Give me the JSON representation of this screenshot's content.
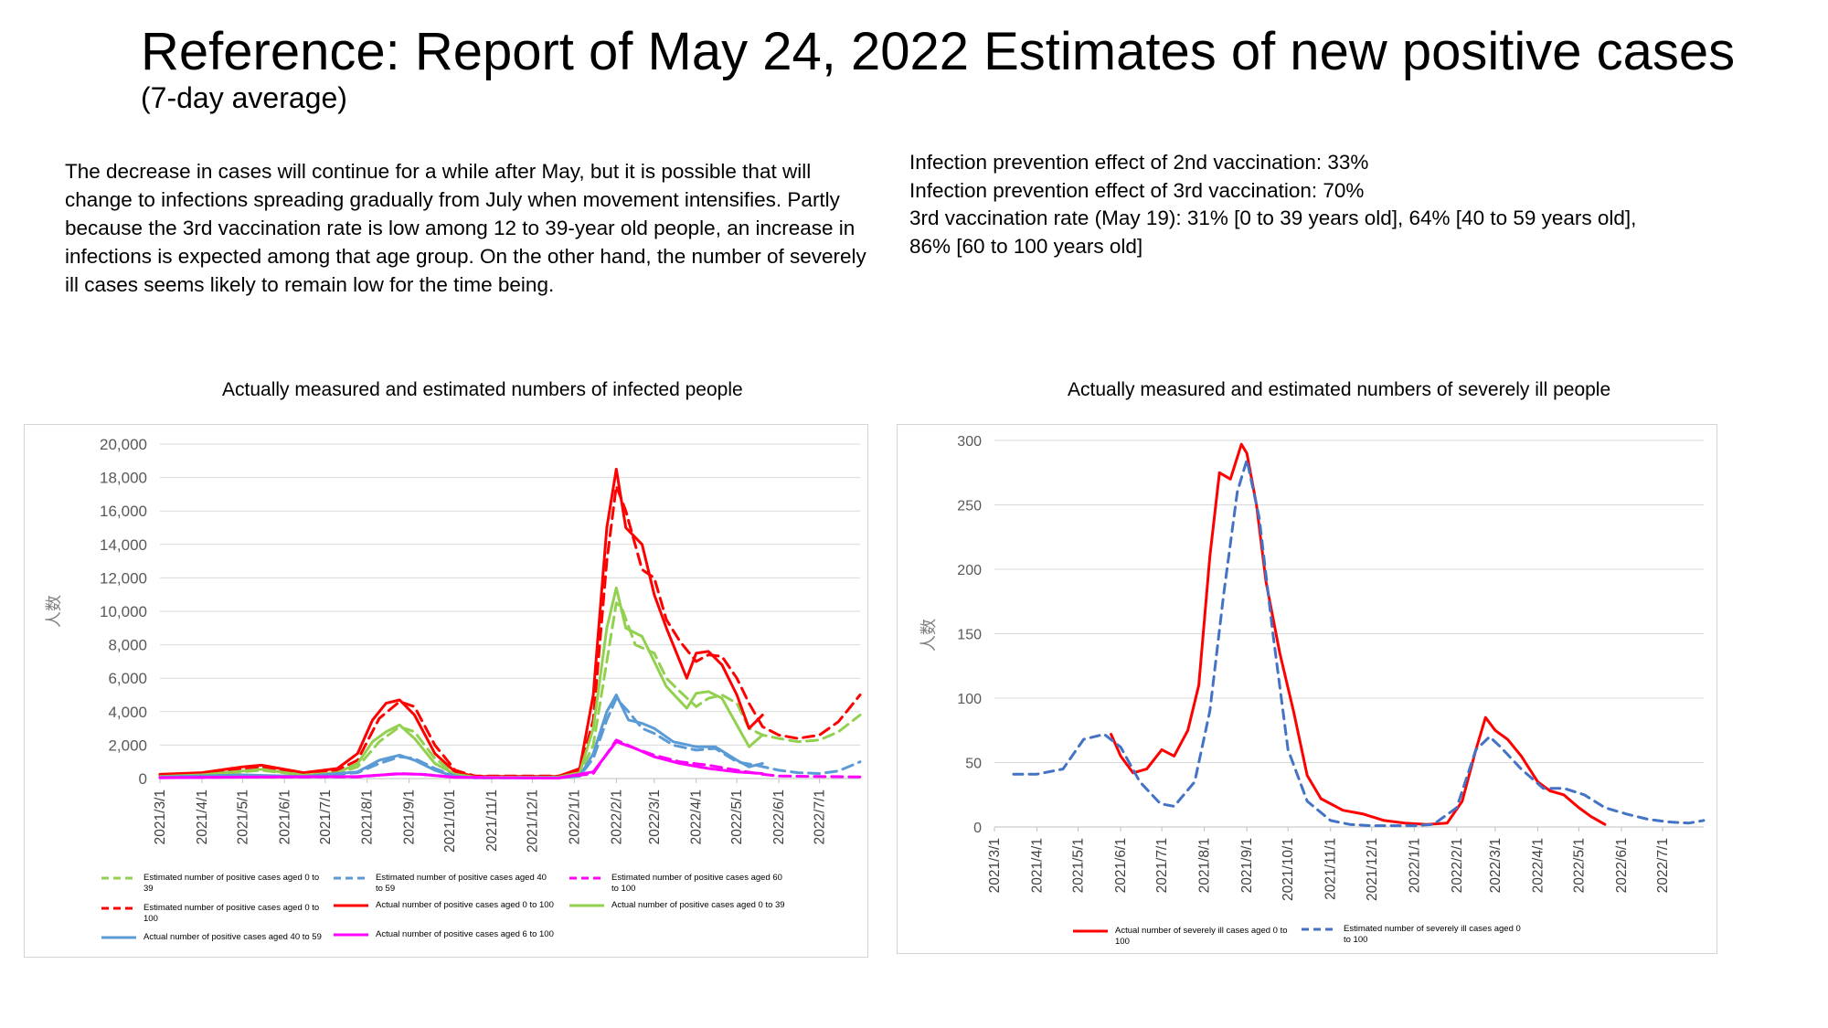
{
  "page": {
    "title": "Reference: Report of May 24, 2022  Estimates of new positive cases",
    "subtitle": "(7-day average)",
    "paragraph": "The decrease in cases will continue for a while after May, but it is possible that will change to infections spreading gradually from July when movement intensifies. Partly because the 3rd vaccination rate is low among 12 to 39-year old people, an increase in infections is expected among that age group. On the other hand, the number of severely ill cases seems likely to remain low for the time being.",
    "facts": [
      "Infection prevention effect of 2nd vaccination: 33%",
      "Infection prevention effect of 3rd vaccination: 70%",
      "3rd vaccination rate (May 19): 31% [0 to 39 years old], 64% [40 to 59 years old], 86% [60 to 100 years old]"
    ]
  },
  "chart_data": [
    {
      "type": "line",
      "title": "Actually measured and estimated numbers of infected people",
      "ylabel": "人数",
      "ylim": [
        0,
        20000
      ],
      "yticks": [
        0,
        2000,
        4000,
        6000,
        8000,
        10000,
        12000,
        14000,
        16000,
        18000,
        20000
      ],
      "ytick_labels": [
        "0",
        "2,000",
        "4,000",
        "6,000",
        "8,000",
        "10,000",
        "12,000",
        "14,000",
        "16,000",
        "18,000",
        "20,000"
      ],
      "xlim": [
        "2021-03-01",
        "2022-07-31"
      ],
      "xtick_labels": [
        "2021/3/1",
        "2021/4/1",
        "2021/5/1",
        "2021/6/1",
        "2021/7/1",
        "2021/8/1",
        "2021/9/1",
        "2021/10/1",
        "2021/11/1",
        "2021/12/1",
        "2022/1/1",
        "2022/2/1",
        "2022/3/1",
        "2022/4/1",
        "2022/5/1",
        "2022/6/1",
        "2022/7/1"
      ],
      "grid": true,
      "legend_position": "bottom",
      "series": [
        {
          "name": "Estimated number of positive cases aged 0 to 39",
          "color": "#92d050",
          "dashed": true,
          "x": [
            "2021-03-01",
            "2021-04-01",
            "2021-05-01",
            "2021-05-15",
            "2021-06-15",
            "2021-07-10",
            "2021-07-25",
            "2021-08-10",
            "2021-08-25",
            "2021-09-05",
            "2021-09-20",
            "2021-10-05",
            "2021-10-20",
            "2021-12-20",
            "2022-01-05",
            "2022-01-15",
            "2022-01-25",
            "2022-02-01",
            "2022-02-05",
            "2022-02-15",
            "2022-03-01",
            "2022-03-10",
            "2022-03-20",
            "2022-04-01",
            "2022-04-10",
            "2022-04-20",
            "2022-05-01",
            "2022-05-10",
            "2022-05-20",
            "2022-06-01",
            "2022-06-15",
            "2022-07-01",
            "2022-07-15",
            "2022-07-31"
          ],
          "y": [
            100,
            200,
            400,
            500,
            200,
            300,
            700,
            2200,
            3100,
            2800,
            1200,
            300,
            80,
            80,
            300,
            2000,
            7000,
            10500,
            10200,
            8000,
            7500,
            6000,
            5200,
            4300,
            4800,
            5000,
            4500,
            3000,
            2600,
            2400,
            2200,
            2300,
            2800,
            3800
          ]
        },
        {
          "name": "Estimated number of positive cases aged 0 to 100",
          "color": "#ff0000",
          "dashed": true,
          "x": [
            "2021-03-01",
            "2021-04-01",
            "2021-05-01",
            "2021-05-15",
            "2021-06-15",
            "2021-07-10",
            "2021-07-25",
            "2021-08-10",
            "2021-08-25",
            "2021-09-05",
            "2021-09-20",
            "2021-10-05",
            "2021-10-20",
            "2021-12-20",
            "2022-01-05",
            "2022-01-15",
            "2022-01-25",
            "2022-02-01",
            "2022-02-08",
            "2022-02-20",
            "2022-03-01",
            "2022-03-10",
            "2022-03-20",
            "2022-04-01",
            "2022-04-10",
            "2022-04-20",
            "2022-05-01",
            "2022-05-10",
            "2022-05-20",
            "2022-06-01",
            "2022-06-15",
            "2022-07-01",
            "2022-07-15",
            "2022-07-31"
          ],
          "y": [
            200,
            300,
            600,
            700,
            300,
            500,
            1100,
            3600,
            4600,
            4300,
            2000,
            500,
            150,
            150,
            500,
            3500,
            13000,
            17500,
            16000,
            12500,
            12000,
            9500,
            8200,
            7000,
            7400,
            7300,
            6000,
            4500,
            3100,
            2600,
            2400,
            2600,
            3400,
            5000
          ]
        },
        {
          "name": "Actual number of positive cases aged 0 to 100",
          "color": "#ff0000",
          "dashed": false,
          "x": [
            "2021-03-01",
            "2021-04-01",
            "2021-05-01",
            "2021-05-15",
            "2021-06-15",
            "2021-07-10",
            "2021-07-25",
            "2021-08-05",
            "2021-08-15",
            "2021-08-25",
            "2021-09-05",
            "2021-09-20",
            "2021-10-05",
            "2021-10-20",
            "2021-12-20",
            "2022-01-05",
            "2022-01-15",
            "2022-01-25",
            "2022-02-01",
            "2022-02-08",
            "2022-02-20",
            "2022-03-01",
            "2022-03-10",
            "2022-03-25",
            "2022-04-01",
            "2022-04-10",
            "2022-04-20",
            "2022-05-01",
            "2022-05-10",
            "2022-05-20"
          ],
          "y": [
            250,
            350,
            700,
            800,
            350,
            600,
            1500,
            3500,
            4500,
            4700,
            3800,
            1500,
            400,
            120,
            120,
            600,
            5000,
            15000,
            18500,
            15000,
            14000,
            11000,
            9000,
            6000,
            7500,
            7600,
            6800,
            5000,
            3000,
            3800
          ]
        },
        {
          "name": "Actual number of positive cases aged 0 to 39",
          "color": "#92d050",
          "dashed": false,
          "x": [
            "2021-03-01",
            "2021-04-01",
            "2021-05-01",
            "2021-05-15",
            "2021-06-15",
            "2021-07-10",
            "2021-07-25",
            "2021-08-05",
            "2021-08-15",
            "2021-08-25",
            "2021-09-05",
            "2021-09-20",
            "2021-10-05",
            "2021-10-20",
            "2021-12-20",
            "2022-01-05",
            "2022-01-15",
            "2022-01-25",
            "2022-02-01",
            "2022-02-08",
            "2022-02-20",
            "2022-03-01",
            "2022-03-10",
            "2022-03-25",
            "2022-04-01",
            "2022-04-10",
            "2022-04-20",
            "2022-05-01",
            "2022-05-10",
            "2022-05-20"
          ],
          "y": [
            120,
            220,
            450,
            550,
            200,
            350,
            900,
            2200,
            2800,
            3200,
            2400,
            900,
            250,
            80,
            80,
            350,
            3000,
            9000,
            11400,
            9000,
            8500,
            7000,
            5500,
            4200,
            5100,
            5200,
            4800,
            3200,
            1900,
            2600
          ]
        },
        {
          "name": "Estimated number of positive cases aged 40 to 59",
          "color": "#5b9bd5",
          "dashed": true,
          "x": [
            "2021-03-01",
            "2021-05-01",
            "2021-06-15",
            "2021-07-25",
            "2021-08-10",
            "2021-08-25",
            "2021-09-05",
            "2021-09-20",
            "2021-10-05",
            "2021-10-20",
            "2021-12-20",
            "2022-01-05",
            "2022-01-15",
            "2022-01-25",
            "2022-02-01",
            "2022-02-10",
            "2022-02-20",
            "2022-03-01",
            "2022-03-15",
            "2022-04-01",
            "2022-04-15",
            "2022-05-01",
            "2022-05-15",
            "2022-06-01",
            "2022-06-15",
            "2022-07-01",
            "2022-07-15",
            "2022-07-31"
          ],
          "y": [
            80,
            200,
            100,
            350,
            900,
            1300,
            1200,
            600,
            150,
            40,
            40,
            150,
            1200,
            3500,
            4800,
            4000,
            3000,
            2700,
            2000,
            1700,
            1800,
            1000,
            800,
            500,
            350,
            300,
            450,
            1000
          ]
        },
        {
          "name": "Actual number of positive cases aged 40 to 59",
          "color": "#5b9bd5",
          "dashed": false,
          "x": [
            "2021-03-01",
            "2021-05-01",
            "2021-06-15",
            "2021-07-25",
            "2021-08-10",
            "2021-08-25",
            "2021-09-05",
            "2021-09-20",
            "2021-10-05",
            "2021-10-20",
            "2021-12-20",
            "2022-01-05",
            "2022-01-15",
            "2022-01-25",
            "2022-02-01",
            "2022-02-10",
            "2022-02-20",
            "2022-03-01",
            "2022-03-15",
            "2022-04-01",
            "2022-04-15",
            "2022-05-01",
            "2022-05-10",
            "2022-05-20"
          ],
          "y": [
            90,
            220,
            120,
            400,
            1100,
            1400,
            1100,
            500,
            120,
            40,
            40,
            150,
            1500,
            4000,
            5000,
            3500,
            3300,
            3000,
            2200,
            1900,
            1900,
            1100,
            700,
            900
          ]
        },
        {
          "name": "Estimated number of positive cases aged 60 to 100",
          "color": "#ff00ff",
          "dashed": true,
          "x": [
            "2021-03-01",
            "2021-05-01",
            "2021-07-25",
            "2021-08-25",
            "2021-09-10",
            "2021-10-05",
            "2021-12-20",
            "2022-01-15",
            "2022-02-01",
            "2022-02-15",
            "2022-03-01",
            "2022-03-20",
            "2022-04-10",
            "2022-05-01",
            "2022-05-20",
            "2022-06-01",
            "2022-07-31"
          ],
          "y": [
            50,
            80,
            100,
            300,
            250,
            80,
            30,
            300,
            2300,
            1800,
            1400,
            1000,
            800,
            500,
            250,
            150,
            100
          ]
        },
        {
          "name": "Actual number of positive cases aged 6 to 100",
          "color": "#ff00ff",
          "dashed": false,
          "x": [
            "2021-03-01",
            "2021-05-01",
            "2021-07-25",
            "2021-08-25",
            "2021-09-10",
            "2021-10-05",
            "2021-12-20",
            "2022-01-15",
            "2022-02-01",
            "2022-02-15",
            "2022-03-01",
            "2022-03-20",
            "2022-04-10",
            "2022-05-01",
            "2022-05-20"
          ],
          "y": [
            50,
            90,
            120,
            280,
            250,
            70,
            30,
            400,
            2200,
            1800,
            1300,
            900,
            600,
            400,
            300
          ]
        }
      ]
    },
    {
      "type": "line",
      "title": "Actually measured and estimated numbers of severely ill people",
      "ylabel": "人数",
      "ylim": [
        0,
        300
      ],
      "yticks": [
        0,
        50,
        100,
        150,
        200,
        250,
        300
      ],
      "ytick_labels": [
        "0",
        "50",
        "100",
        "150",
        "200",
        "250",
        "300"
      ],
      "xlim": [
        "2021-03-01",
        "2022-07-31"
      ],
      "xtick_labels": [
        "2021/3/1",
        "2021/4/1",
        "2021/5/1",
        "2021/6/1",
        "2021/7/1",
        "2021/8/1",
        "2021/9/1",
        "2021/10/1",
        "2021/11/1",
        "2021/12/1",
        "2022/1/1",
        "2022/2/1",
        "2022/3/1",
        "2022/4/1",
        "2022/5/1",
        "2022/6/1",
        "2022/7/1"
      ],
      "grid": true,
      "legend_position": "bottom",
      "series": [
        {
          "name": "Actual number of severely ill cases aged 0 to 100",
          "color": "#ff0000",
          "dashed": false,
          "x": [
            "2021-05-25",
            "2021-06-01",
            "2021-06-10",
            "2021-06-20",
            "2021-07-01",
            "2021-07-10",
            "2021-07-20",
            "2021-07-28",
            "2021-08-05",
            "2021-08-12",
            "2021-08-20",
            "2021-08-28",
            "2021-09-01",
            "2021-09-08",
            "2021-09-15",
            "2021-09-25",
            "2021-10-05",
            "2021-10-15",
            "2021-10-25",
            "2021-11-10",
            "2021-11-25",
            "2021-12-10",
            "2021-12-25",
            "2022-01-10",
            "2022-01-25",
            "2022-02-05",
            "2022-02-15",
            "2022-02-22",
            "2022-03-01",
            "2022-03-10",
            "2022-03-20",
            "2022-04-01",
            "2022-04-10",
            "2022-04-20",
            "2022-05-01",
            "2022-05-10",
            "2022-05-20"
          ],
          "y": [
            72,
            55,
            42,
            45,
            60,
            55,
            75,
            110,
            210,
            275,
            270,
            297,
            290,
            250,
            190,
            135,
            90,
            40,
            22,
            13,
            10,
            5,
            3,
            2,
            3,
            20,
            60,
            85,
            75,
            68,
            55,
            35,
            28,
            25,
            15,
            8,
            2
          ]
        },
        {
          "name": "Estimated number of severely ill cases aged 0 to 100",
          "color": "#4472c4",
          "dashed": true,
          "x": [
            "2021-03-15",
            "2021-04-01",
            "2021-04-20",
            "2021-05-05",
            "2021-05-20",
            "2021-06-01",
            "2021-06-15",
            "2021-06-30",
            "2021-07-10",
            "2021-07-25",
            "2021-08-05",
            "2021-08-15",
            "2021-08-25",
            "2021-09-01",
            "2021-09-10",
            "2021-09-20",
            "2021-10-01",
            "2021-10-15",
            "2021-11-01",
            "2021-11-15",
            "2021-12-01",
            "2021-12-15",
            "2022-01-01",
            "2022-01-15",
            "2022-02-01",
            "2022-02-15",
            "2022-02-25",
            "2022-03-05",
            "2022-03-20",
            "2022-04-05",
            "2022-04-20",
            "2022-05-05",
            "2022-05-20",
            "2022-06-05",
            "2022-06-20",
            "2022-07-05",
            "2022-07-20",
            "2022-07-31"
          ],
          "y": [
            41,
            41,
            45,
            68,
            72,
            62,
            35,
            18,
            16,
            35,
            90,
            180,
            260,
            285,
            240,
            150,
            60,
            20,
            5,
            2,
            1,
            1,
            1,
            2,
            15,
            60,
            70,
            62,
            45,
            30,
            30,
            25,
            15,
            10,
            6,
            4,
            3,
            5
          ]
        }
      ]
    }
  ],
  "legend_left": [
    "Estimated number of positive cases aged 0 to 39",
    "Estimated number of positive cases aged 40 to 59",
    "Estimated number of positive cases aged 60 to 100",
    "Estimated number of positive cases aged 0 to 100",
    "Actual number of positive cases aged 0 to 100",
    "Actual number of positive cases aged 0 to 39",
    "Actual number of positive cases aged 40 to 59",
    "Actual number of positive cases aged 6 to 100"
  ],
  "legend_right": [
    "Actual number of severely ill cases aged 0 to 100",
    "Estimated number of severely ill cases aged 0 to 100"
  ]
}
